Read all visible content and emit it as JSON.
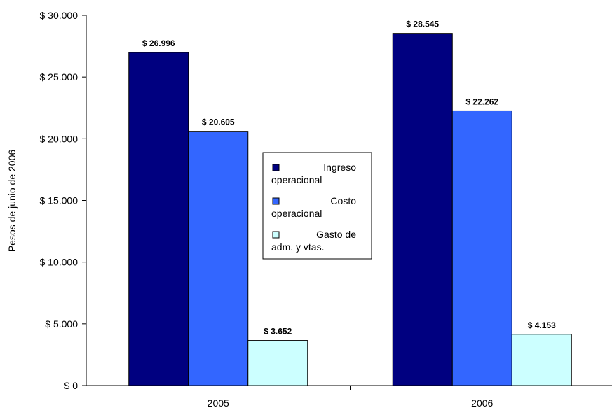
{
  "chart_data": {
    "type": "bar",
    "categories": [
      "2005",
      "2006"
    ],
    "series": [
      {
        "name": "Ingreso operacional",
        "legend_lines": [
          "Ingreso",
          "operacional"
        ],
        "values": [
          26996,
          28545
        ],
        "labels": [
          "$ 26.996",
          "$ 28.545"
        ],
        "color": "#000080"
      },
      {
        "name": "Costo operacional",
        "legend_lines": [
          "Costo",
          "operacional"
        ],
        "values": [
          20605,
          22262
        ],
        "labels": [
          "$ 20.605",
          "$ 22.262"
        ],
        "color": "#3366ff"
      },
      {
        "name": "Gasto de adm. y vtas.",
        "legend_lines": [
          "Gasto de",
          "adm. y vtas."
        ],
        "values": [
          3652,
          4153
        ],
        "labels": [
          "$ 3.652",
          "$ 4.153"
        ],
        "color": "#ccffff"
      }
    ],
    "ylabel": "Pesos de junio de 2006",
    "ylim": [
      0,
      30000
    ],
    "yticks": [
      0,
      5000,
      10000,
      15000,
      20000,
      25000,
      30000
    ],
    "ytick_labels": [
      "$ 0",
      "$ 5.000",
      "$ 10.000",
      "$ 15.000",
      "$ 20.000",
      "$ 25.000",
      "$ 30.000"
    ],
    "grid": false,
    "legend_position": "center"
  }
}
